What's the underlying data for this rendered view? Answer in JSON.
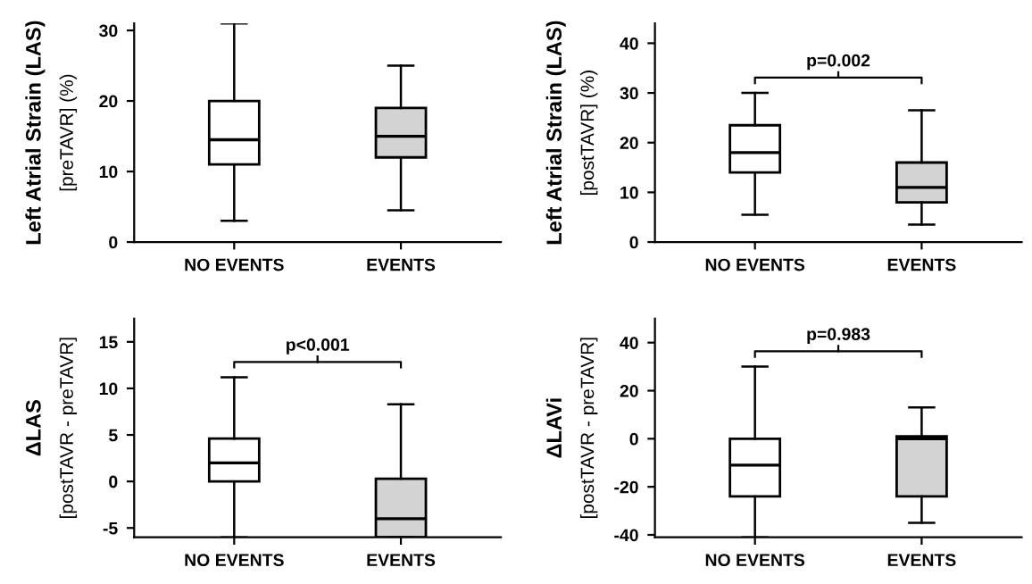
{
  "chart_data": [
    {
      "type": "box",
      "categories": [
        "NO EVENTS",
        "EVENTS"
      ],
      "ylabel": "Left Atrial Strain (LAS)\n[preTAVR] (%)",
      "ylim": [
        0,
        31
      ],
      "yticks": [
        0,
        10,
        20,
        30
      ],
      "colors": [
        "#ffffff",
        "#d3d3d3"
      ],
      "boxes": [
        {
          "low": 3,
          "q1": 11,
          "median": 14.5,
          "q3": 20,
          "high": 31
        },
        {
          "low": 4.5,
          "q1": 12,
          "median": 15,
          "q3": 19,
          "high": 25
        }
      ],
      "grid": false
    },
    {
      "type": "box",
      "categories": [
        "NO EVENTS",
        "EVENTS"
      ],
      "ylabel": "Left Atrial Strain (LAS)\n[postTAVR] (%)",
      "ylim": [
        0,
        44
      ],
      "yticks": [
        0,
        10,
        20,
        30,
        40
      ],
      "colors": [
        "#ffffff",
        "#d3d3d3"
      ],
      "boxes": [
        {
          "low": 5.5,
          "q1": 14,
          "median": 18,
          "q3": 23.5,
          "high": 30
        },
        {
          "low": 3.5,
          "q1": 8,
          "median": 11,
          "q3": 16,
          "high": 26.5
        }
      ],
      "annotations": [
        "p=0.002"
      ],
      "grid": false
    },
    {
      "type": "box",
      "categories": [
        "NO EVENTS",
        "EVENTS"
      ],
      "ylabel": "ΔLAS\n[postTAVR - preTAVR]",
      "ylim": [
        -6,
        17.5
      ],
      "yticks": [
        -5,
        0,
        5,
        10,
        15
      ],
      "colors": [
        "#ffffff",
        "#d3d3d3"
      ],
      "boxes": [
        {
          "low": -6,
          "q1": 0,
          "median": 2,
          "q3": 4.6,
          "high": 11.2
        },
        {
          "low": -6,
          "q1": -6,
          "median": -4,
          "q3": 0.3,
          "high": 8.3
        }
      ],
      "annotations": [
        "p<0.001"
      ],
      "grid": false
    },
    {
      "type": "box",
      "categories": [
        "NO EVENTS",
        "EVENTS"
      ],
      "ylabel": "ΔLAVi\n[postTAVR - preTAVR]",
      "ylim": [
        -41,
        50
      ],
      "yticks": [
        -40,
        -20,
        0,
        20,
        40
      ],
      "colors": [
        "#ffffff",
        "#d3d3d3"
      ],
      "boxes": [
        {
          "low": -41,
          "q1": -24,
          "median": -11,
          "q3": 0,
          "high": 30
        },
        {
          "low": -35,
          "q1": -24,
          "median": 0,
          "q3": 1,
          "high": 13
        }
      ],
      "annotations": [
        "p=0.983"
      ],
      "grid": false
    }
  ]
}
